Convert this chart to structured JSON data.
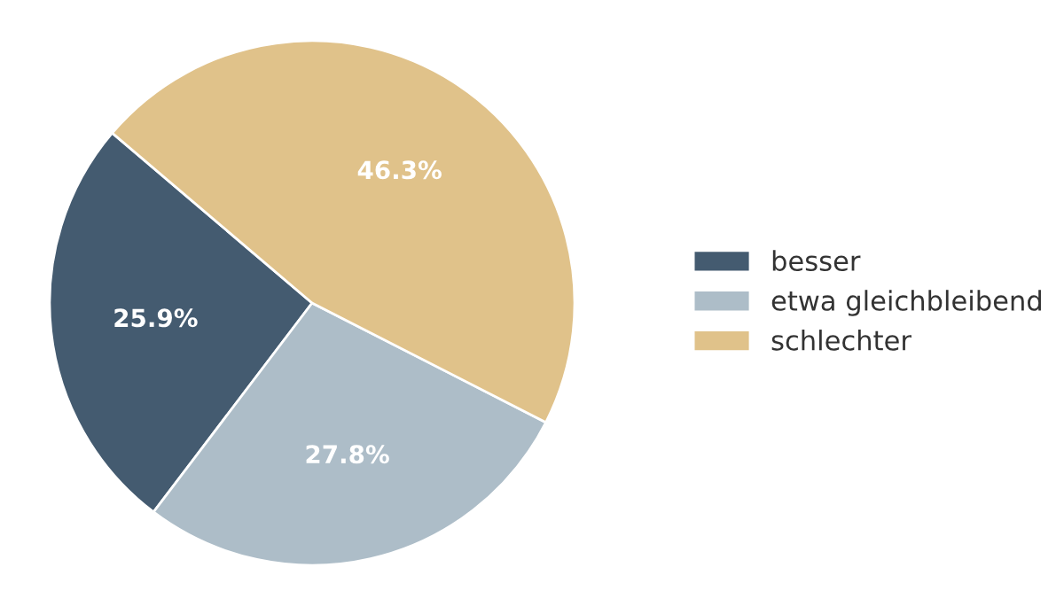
{
  "chart_data": {
    "type": "pie",
    "categories": [
      "besser",
      "etwa gleichbleibend",
      "schlechter"
    ],
    "values": [
      25.9,
      27.8,
      46.3
    ],
    "colors": [
      "#445b70",
      "#adbdc8",
      "#e0c28a"
    ],
    "value_labels": [
      "25.9%",
      "27.8%",
      "46.3%"
    ],
    "legend": "right"
  }
}
